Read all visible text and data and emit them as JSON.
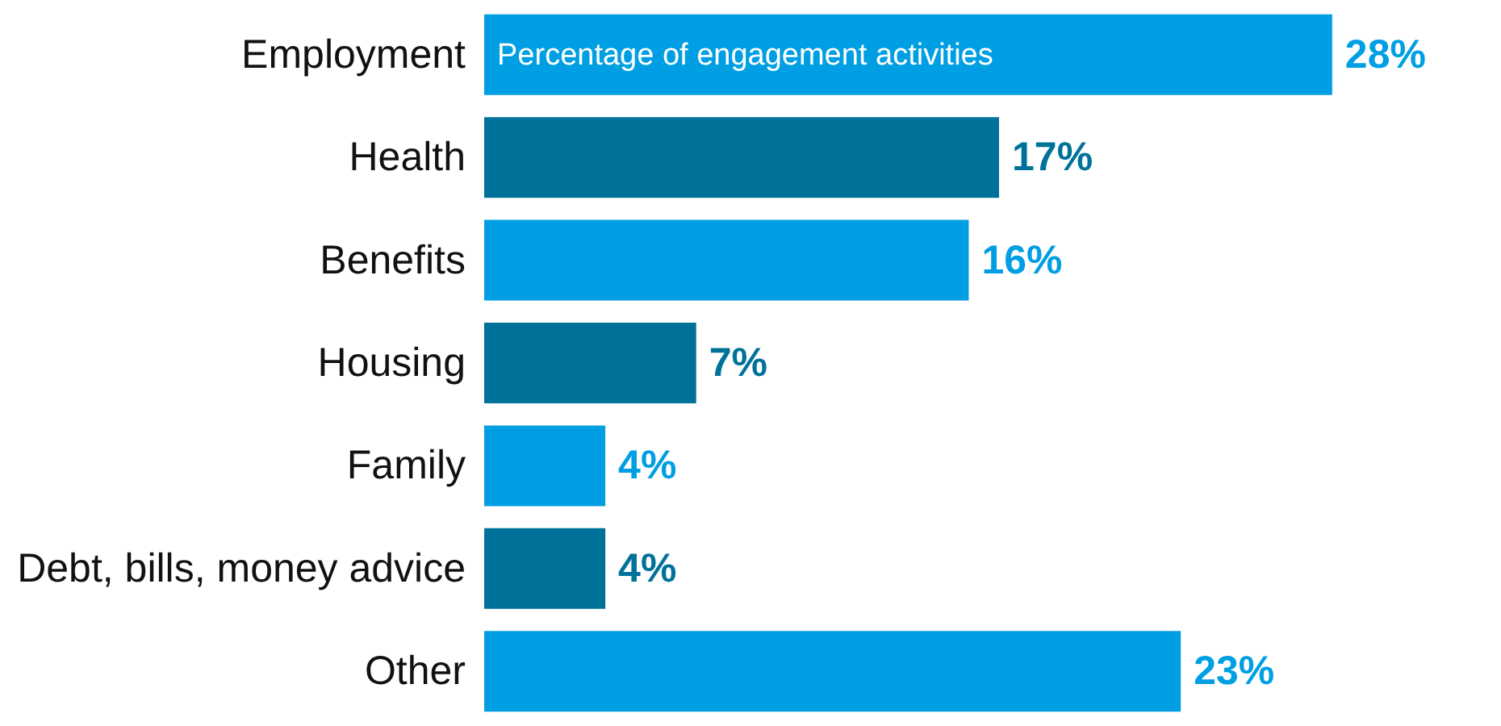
{
  "chart_data": {
    "type": "bar",
    "orientation": "horizontal",
    "categories": [
      "Employment",
      "Health",
      "Benefits",
      "Housing",
      "Family",
      "Debt, bills, money advice",
      "Other"
    ],
    "values": [
      28,
      17,
      16,
      7,
      4,
      4,
      23
    ],
    "colors": [
      "#009fe3",
      "#00729a",
      "#009fe3",
      "#00729a",
      "#009fe3",
      "#00729a",
      "#009fe3"
    ],
    "value_labels": [
      "28%",
      "17%",
      "16%",
      "7%",
      "4%",
      "4%",
      "23%"
    ],
    "annotations": [
      "Percentage of engagement activities"
    ],
    "grid": false
  }
}
